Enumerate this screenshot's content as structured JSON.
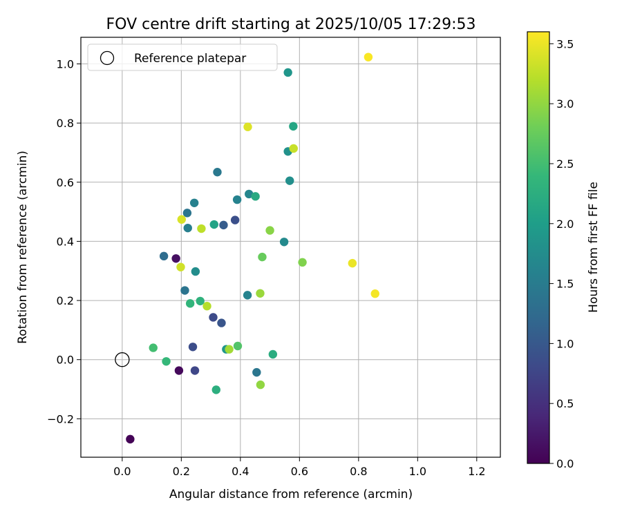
{
  "chart_data": {
    "type": "scatter",
    "title": "FOV centre drift starting at 2025/10/05 17:29:53",
    "xlabel": "Angular distance from reference (arcmin)",
    "ylabel": "Rotation from reference (arcmin)",
    "xlim": [
      -0.14,
      1.28
    ],
    "ylim": [
      -0.33,
      1.09
    ],
    "xticks": [
      0.0,
      0.2,
      0.4,
      0.6,
      0.8,
      1.0,
      1.2
    ],
    "xtick_labels": [
      "0.0",
      "0.2",
      "0.4",
      "0.6",
      "0.8",
      "1.0",
      "1.2"
    ],
    "yticks": [
      -0.2,
      0.0,
      0.2,
      0.4,
      0.6,
      0.8,
      1.0
    ],
    "ytick_labels": [
      "−0.2",
      "0.0",
      "0.2",
      "0.4",
      "0.6",
      "0.8",
      "1.0"
    ],
    "grid": true,
    "legend": {
      "position": "top-left",
      "entries": [
        "Reference platepar"
      ]
    },
    "reference_point": {
      "x": 0.0,
      "y": 0.0
    },
    "colorbar": {
      "label": "Hours from first FF file",
      "range": [
        0.0,
        3.6
      ],
      "ticks": [
        0.0,
        0.5,
        1.0,
        1.5,
        2.0,
        2.5,
        3.0,
        3.5
      ],
      "tick_labels": [
        "0.0",
        "0.5",
        "1.0",
        "1.5",
        "2.0",
        "2.5",
        "3.0",
        "3.5"
      ],
      "colormap": "viridis"
    },
    "points": [
      {
        "x": 0.027,
        "y": -0.269,
        "hours": 0.02
      },
      {
        "x": 0.192,
        "y": -0.037,
        "hours": 0.08
      },
      {
        "x": 0.182,
        "y": 0.342,
        "hours": 0.15
      },
      {
        "x": 0.246,
        "y": -0.037,
        "hours": 0.78
      },
      {
        "x": 0.239,
        "y": 0.043,
        "hours": 0.85
      },
      {
        "x": 0.308,
        "y": 0.143,
        "hours": 0.82
      },
      {
        "x": 0.336,
        "y": 0.124,
        "hours": 0.95
      },
      {
        "x": 0.382,
        "y": 0.472,
        "hours": 0.88
      },
      {
        "x": 0.343,
        "y": 0.455,
        "hours": 1.05
      },
      {
        "x": 0.141,
        "y": 0.35,
        "hours": 1.28
      },
      {
        "x": 0.212,
        "y": 0.234,
        "hours": 1.38
      },
      {
        "x": 0.22,
        "y": 0.496,
        "hours": 1.4
      },
      {
        "x": 0.455,
        "y": -0.043,
        "hours": 1.42
      },
      {
        "x": 0.322,
        "y": 0.634,
        "hours": 1.45
      },
      {
        "x": 0.222,
        "y": 0.445,
        "hours": 1.55
      },
      {
        "x": 0.244,
        "y": 0.53,
        "hours": 1.58
      },
      {
        "x": 0.389,
        "y": 0.541,
        "hours": 1.6
      },
      {
        "x": 0.424,
        "y": 0.218,
        "hours": 1.62
      },
      {
        "x": 0.429,
        "y": 0.56,
        "hours": 1.65
      },
      {
        "x": 0.548,
        "y": 0.398,
        "hours": 1.72
      },
      {
        "x": 0.248,
        "y": 0.298,
        "hours": 1.75
      },
      {
        "x": 0.567,
        "y": 0.605,
        "hours": 1.78
      },
      {
        "x": 0.561,
        "y": 0.704,
        "hours": 1.82
      },
      {
        "x": 0.561,
        "y": 0.971,
        "hours": 1.88
      },
      {
        "x": 0.352,
        "y": 0.035,
        "hours": 1.9
      },
      {
        "x": 0.311,
        "y": 0.457,
        "hours": 2.08
      },
      {
        "x": 0.579,
        "y": 0.789,
        "hours": 2.12
      },
      {
        "x": 0.451,
        "y": 0.552,
        "hours": 2.18
      },
      {
        "x": 0.51,
        "y": 0.018,
        "hours": 2.22
      },
      {
        "x": 0.318,
        "y": -0.102,
        "hours": 2.25
      },
      {
        "x": 0.264,
        "y": 0.198,
        "hours": 2.3
      },
      {
        "x": 0.23,
        "y": 0.19,
        "hours": 2.35
      },
      {
        "x": 0.149,
        "y": -0.006,
        "hours": 2.4
      },
      {
        "x": 0.105,
        "y": 0.04,
        "hours": 2.5
      },
      {
        "x": 0.391,
        "y": 0.046,
        "hours": 2.6
      },
      {
        "x": 0.474,
        "y": 0.347,
        "hours": 2.75
      },
      {
        "x": 0.61,
        "y": 0.329,
        "hours": 2.9
      },
      {
        "x": 0.5,
        "y": 0.437,
        "hours": 2.95
      },
      {
        "x": 0.468,
        "y": -0.085,
        "hours": 3.0
      },
      {
        "x": 0.467,
        "y": 0.224,
        "hours": 3.05
      },
      {
        "x": 0.362,
        "y": 0.035,
        "hours": 3.1
      },
      {
        "x": 0.287,
        "y": 0.181,
        "hours": 3.2
      },
      {
        "x": 0.268,
        "y": 0.443,
        "hours": 3.25
      },
      {
        "x": 0.58,
        "y": 0.714,
        "hours": 3.3
      },
      {
        "x": 0.198,
        "y": 0.313,
        "hours": 3.35
      },
      {
        "x": 0.201,
        "y": 0.474,
        "hours": 3.4
      },
      {
        "x": 0.425,
        "y": 0.787,
        "hours": 3.42
      },
      {
        "x": 0.779,
        "y": 0.326,
        "hours": 3.5
      },
      {
        "x": 0.856,
        "y": 0.223,
        "hours": 3.55
      },
      {
        "x": 0.833,
        "y": 1.023,
        "hours": 3.58
      }
    ]
  }
}
